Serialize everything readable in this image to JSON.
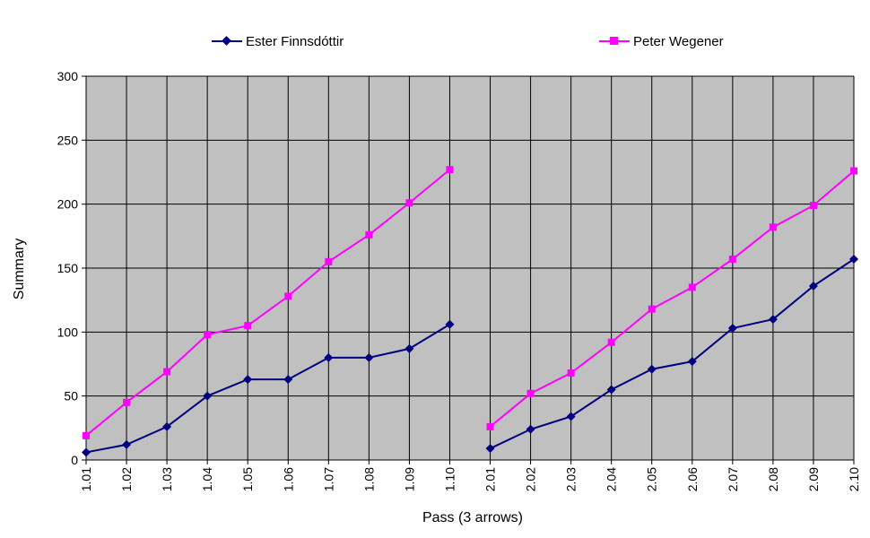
{
  "chart_data": {
    "type": "line",
    "xlabel": "Pass (3 arrows)",
    "ylabel": "Summary",
    "ylim": [
      0,
      300
    ],
    "yticks": [
      0,
      50,
      100,
      150,
      200,
      250,
      300
    ],
    "grid": true,
    "legend_position": "top",
    "background_color": "#c0c0c0",
    "categories": [
      "1.01",
      "1.02",
      "1.03",
      "1.04",
      "1.05",
      "1.06",
      "1.07",
      "1.08",
      "1.09",
      "1.10",
      "2.01",
      "2.02",
      "2.03",
      "2.04",
      "2.05",
      "2.06",
      "2.07",
      "2.08",
      "2.09",
      "2.10"
    ],
    "series": [
      {
        "name": "Ester Finnsdóttir",
        "color": "#000080",
        "marker": "diamond",
        "values": [
          6,
          12,
          26,
          50,
          63,
          63,
          80,
          80,
          87,
          106,
          9,
          24,
          34,
          55,
          71,
          77,
          103,
          110,
          136,
          157
        ]
      },
      {
        "name": "Peter Wegener",
        "color": "#ff00ff",
        "marker": "square",
        "values": [
          19,
          45,
          69,
          98,
          105,
          128,
          155,
          176,
          201,
          227,
          26,
          52,
          68,
          92,
          118,
          135,
          157,
          182,
          199,
          226
        ]
      }
    ]
  }
}
